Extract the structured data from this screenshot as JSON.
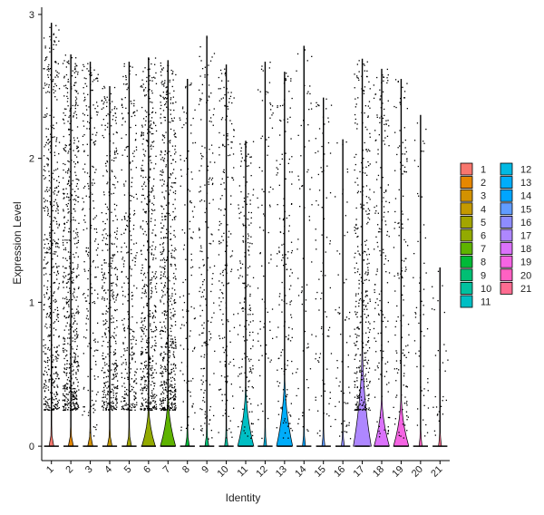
{
  "chart_data": {
    "type": "violin",
    "xlabel": "Identity",
    "ylabel": "Expression Level",
    "ylim": [
      -0.1,
      3.05
    ],
    "yticks": [
      0,
      1,
      2,
      3
    ],
    "grid": false,
    "legend_position": "right",
    "categories": [
      "1",
      "2",
      "3",
      "4",
      "5",
      "6",
      "7",
      "8",
      "9",
      "10",
      "11",
      "12",
      "13",
      "14",
      "15",
      "16",
      "17",
      "18",
      "19",
      "20",
      "21"
    ],
    "colors": [
      "#F8766D",
      "#E58700",
      "#D39200",
      "#C59900",
      "#A3A500",
      "#93AA00",
      "#5EB300",
      "#00BA38",
      "#00BF74",
      "#00C19F",
      "#00BFC4",
      "#00B9E3",
      "#00ADFA",
      "#00A5FF",
      "#619CFF",
      "#8E8CFF",
      "#AE87FF",
      "#DB72FB",
      "#F564E3",
      "#FF61C3",
      "#FF6C91"
    ],
    "max_values": [
      2.94,
      2.72,
      2.67,
      2.5,
      2.67,
      2.7,
      2.68,
      2.55,
      2.85,
      2.65,
      2.12,
      2.67,
      2.6,
      2.78,
      2.42,
      2.13,
      2.69,
      2.62,
      2.55,
      2.3,
      1.24
    ],
    "violin_width": [
      0.2,
      0.22,
      0.22,
      0.2,
      0.2,
      0.7,
      0.8,
      0.15,
      0.15,
      0.12,
      0.85,
      0.1,
      0.85,
      0.1,
      0.1,
      0.1,
      0.95,
      0.8,
      0.8,
      0.1,
      0.1
    ],
    "violin_peak_height": [
      0.03,
      0.03,
      0.03,
      0.03,
      0.03,
      0.08,
      0.1,
      0.03,
      0.03,
      0.03,
      0.12,
      0.03,
      0.14,
      0.03,
      0.03,
      0.03,
      0.2,
      0.1,
      0.1,
      0.03,
      0.03
    ],
    "point_density": [
      520,
      600,
      220,
      420,
      300,
      500,
      600,
      110,
      180,
      180,
      180,
      80,
      160,
      70,
      90,
      60,
      340,
      170,
      140,
      60,
      30
    ]
  },
  "legend": {
    "col1": [
      "1",
      "2",
      "3",
      "4",
      "5",
      "6",
      "7",
      "8",
      "9",
      "10",
      "11"
    ],
    "col2": [
      "12",
      "13",
      "14",
      "15",
      "16",
      "17",
      "18",
      "19",
      "20",
      "21"
    ]
  }
}
